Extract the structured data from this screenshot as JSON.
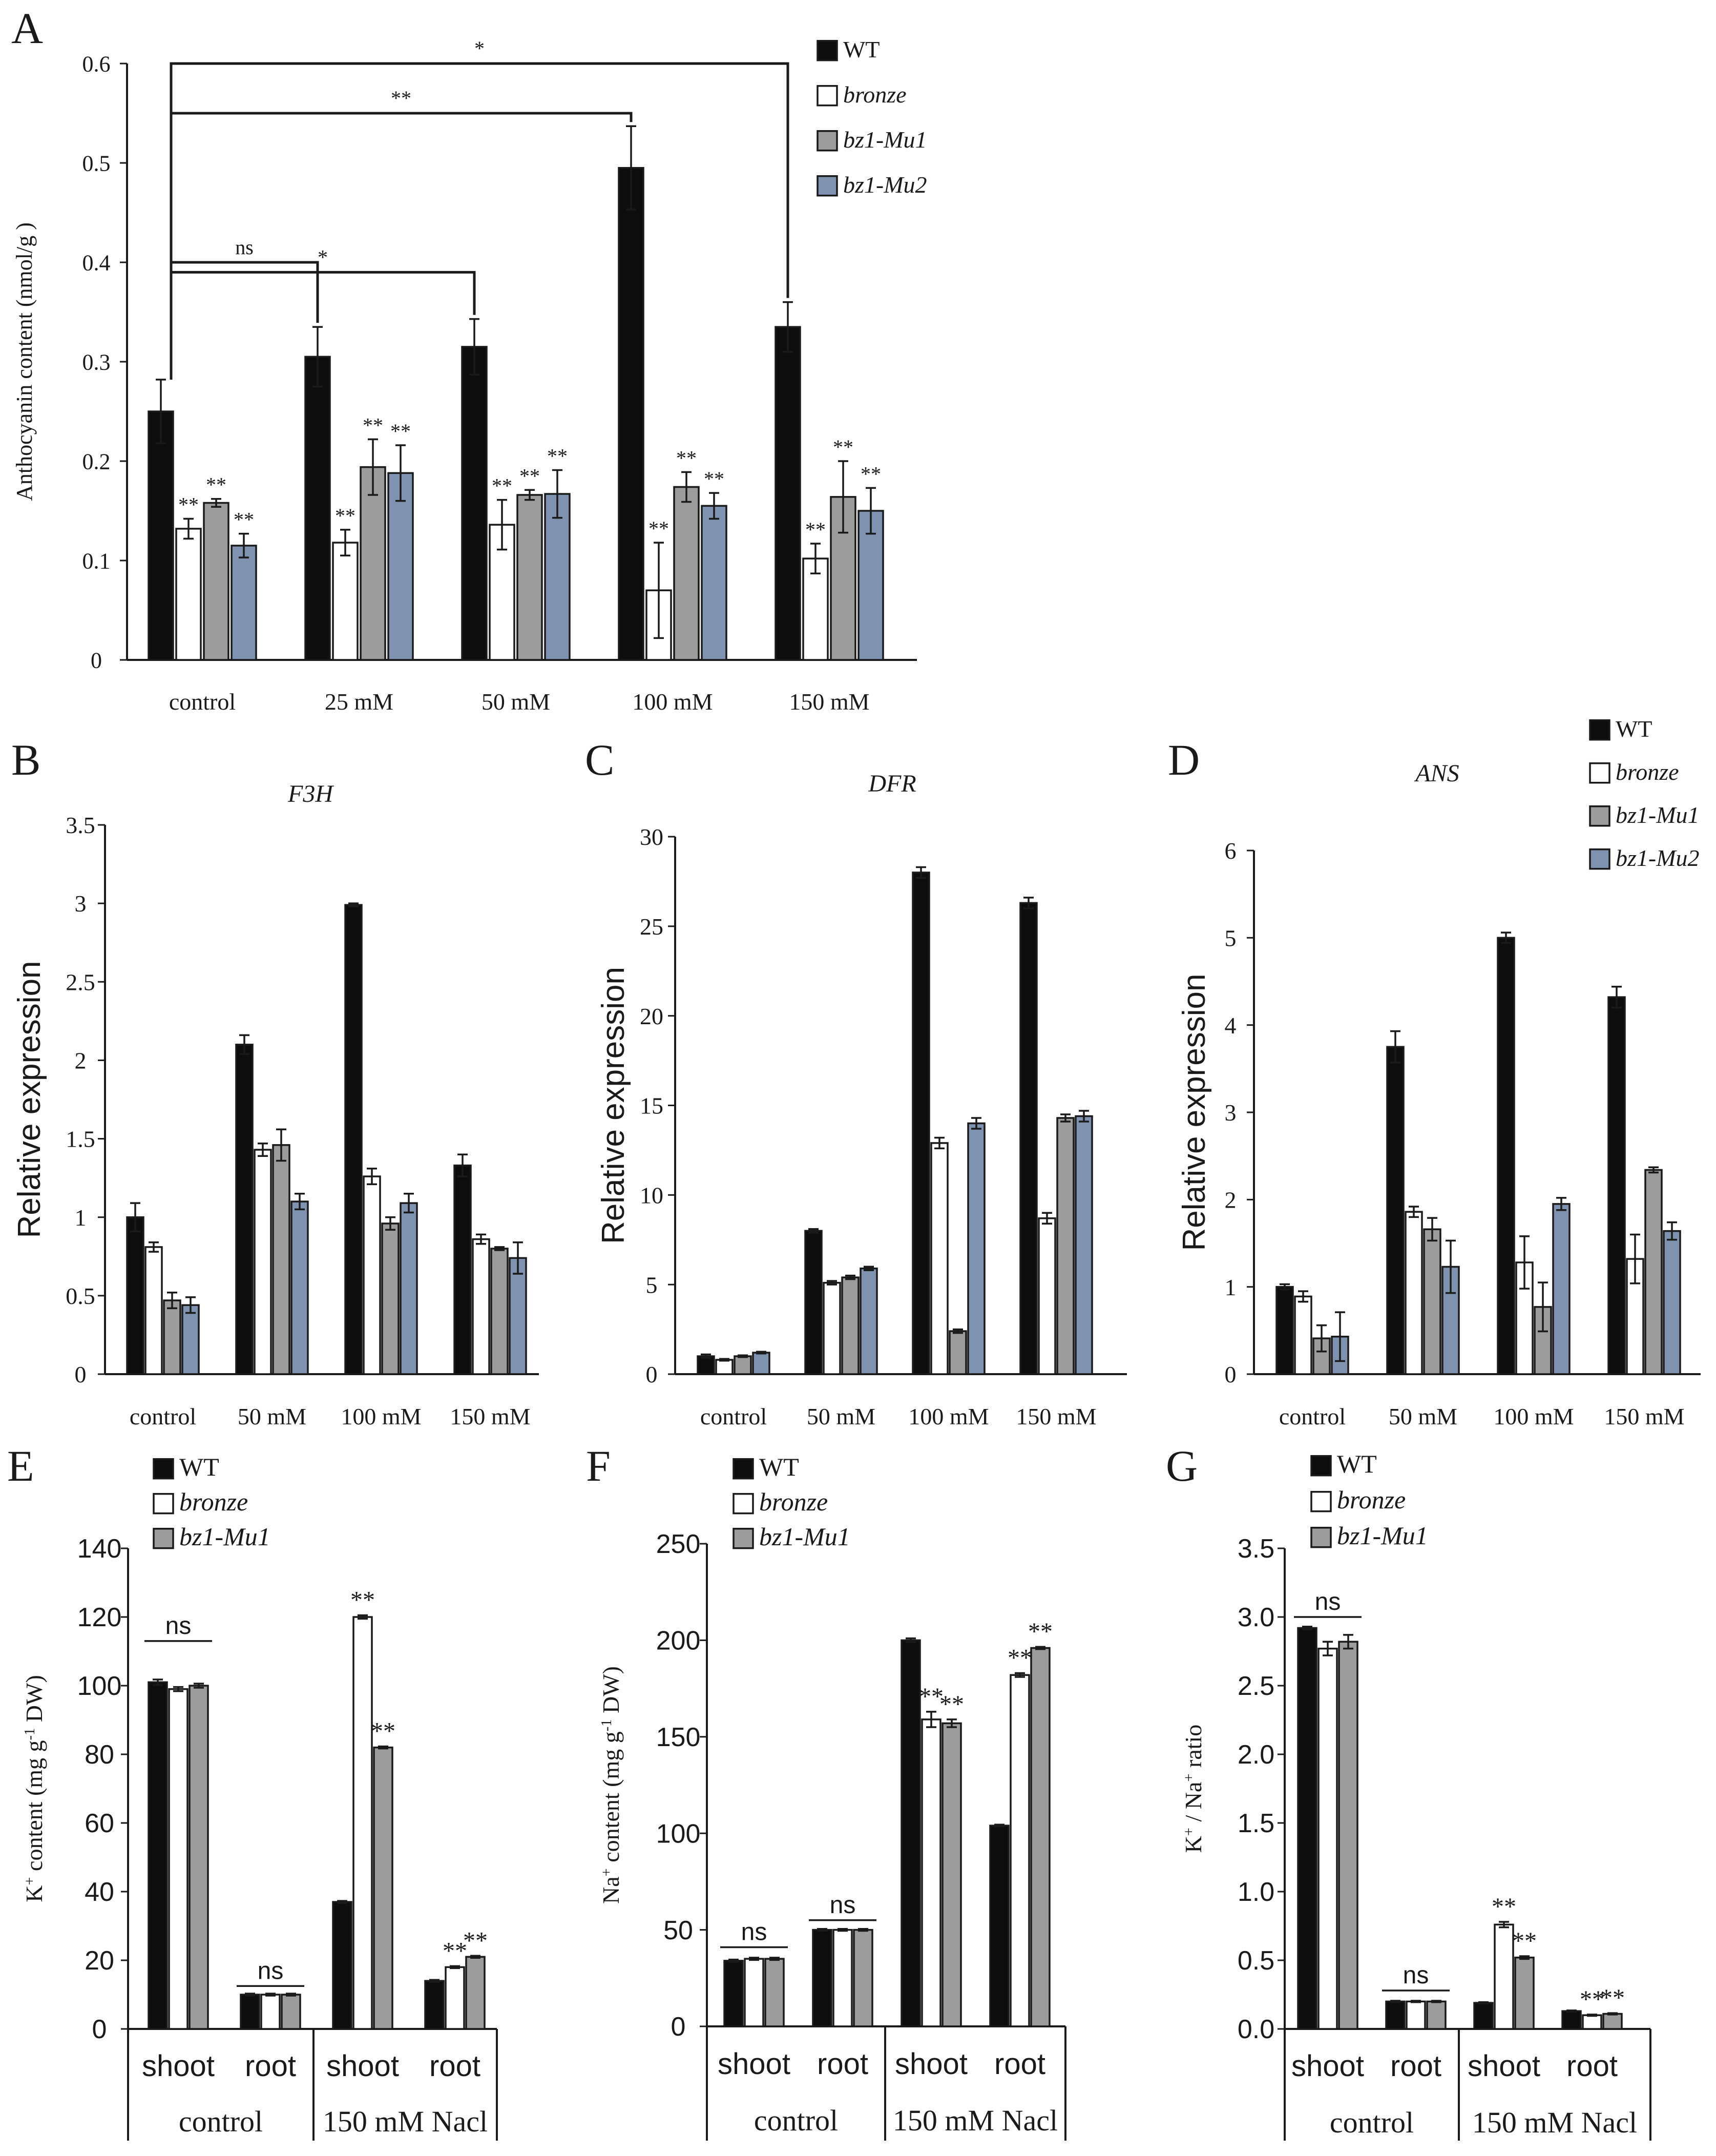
{
  "colors": {
    "WT": "#0d0d0d",
    "bronze": "#ffffff",
    "bz1-Mu1": "#9c9c9c",
    "bz1-Mu2": "#7f93b0"
  },
  "chart_data": [
    {
      "id": "A",
      "panel_label": "A",
      "type": "bar",
      "title": "",
      "ylabel": "Anthocyanin content (nmol/g )",
      "xlabel": "",
      "ylim": [
        0,
        0.6
      ],
      "yticks": [
        "0",
        "0.1",
        "0.2",
        "0.3",
        "0.4",
        "0.5",
        "0.6"
      ],
      "categories": [
        "control",
        "25 mM",
        "50 mM",
        "100 mM",
        "150 mM"
      ],
      "series": [
        {
          "name": "WT",
          "values": [
            0.25,
            0.305,
            0.315,
            0.495,
            0.335
          ],
          "errors": [
            0.032,
            0.03,
            0.028,
            0.042,
            0.025
          ],
          "sig": [
            "",
            "",
            "",
            "",
            ""
          ]
        },
        {
          "name": "bronze",
          "values": [
            0.132,
            0.118,
            0.136,
            0.07,
            0.102
          ],
          "errors": [
            0.01,
            0.013,
            0.025,
            0.048,
            0.015
          ],
          "sig": [
            "**",
            "**",
            "**",
            "**",
            "**"
          ]
        },
        {
          "name": "bz1-Mu1",
          "values": [
            0.158,
            0.194,
            0.166,
            0.174,
            0.164
          ],
          "errors": [
            0.004,
            0.028,
            0.005,
            0.015,
            0.036
          ],
          "sig": [
            "**",
            "**",
            "**",
            "**",
            "**"
          ]
        },
        {
          "name": "bz1-Mu2",
          "values": [
            0.115,
            0.188,
            0.167,
            0.155,
            0.15
          ],
          "errors": [
            0.012,
            0.028,
            0.024,
            0.013,
            0.023
          ],
          "sig": [
            "**",
            "**",
            "**",
            "**",
            "**"
          ]
        }
      ],
      "brackets": [
        {
          "to": 1,
          "label": "ns",
          "level": 0.4
        },
        {
          "to": 2,
          "label": "*",
          "level": 0.39
        },
        {
          "to": 3,
          "label": "**",
          "level": 0.55
        },
        {
          "to": 4,
          "label": "*",
          "level": 0.6
        }
      ],
      "legend": [
        "WT",
        "bronze",
        "bz1-Mu1",
        "bz1-Mu2"
      ],
      "legend_position": "top-right"
    },
    {
      "id": "B",
      "panel_label": "B",
      "type": "bar",
      "title": "F3H",
      "ylabel": "Relative expression",
      "xlabel": "",
      "ylim": [
        0,
        3.5
      ],
      "yticks": [
        "0",
        "0.5",
        "1",
        "1.5",
        "2",
        "2.5",
        "3",
        "3.5"
      ],
      "categories": [
        "control",
        "50 mM",
        "100 mM",
        "150 mM"
      ],
      "series": [
        {
          "name": "WT",
          "values": [
            1.0,
            2.1,
            2.99,
            1.33
          ],
          "errors": [
            0.09,
            0.06,
            0.01,
            0.07
          ]
        },
        {
          "name": "bronze",
          "values": [
            0.81,
            1.43,
            1.26,
            0.86
          ],
          "errors": [
            0.03,
            0.04,
            0.05,
            0.03
          ]
        },
        {
          "name": "bz1-Mu1",
          "values": [
            0.47,
            1.46,
            0.96,
            0.8
          ],
          "errors": [
            0.05,
            0.1,
            0.04,
            0.01
          ]
        },
        {
          "name": "bz1-Mu2",
          "values": [
            0.44,
            1.1,
            1.09,
            0.74
          ],
          "errors": [
            0.05,
            0.05,
            0.06,
            0.1
          ]
        }
      ]
    },
    {
      "id": "C",
      "panel_label": "C",
      "type": "bar",
      "title": "DFR",
      "ylabel": "Relative expression",
      "xlabel": "",
      "ylim": [
        0,
        30
      ],
      "yticks": [
        "0",
        "5",
        "10",
        "15",
        "20",
        "25",
        "30"
      ],
      "categories": [
        "control",
        "50 mM",
        "100 mM",
        "150 mM"
      ],
      "series": [
        {
          "name": "WT",
          "values": [
            1.0,
            8.0,
            28.0,
            26.3
          ],
          "errors": [
            0.1,
            0.1,
            0.3,
            0.3
          ]
        },
        {
          "name": "bronze",
          "values": [
            0.8,
            5.1,
            12.9,
            8.7
          ],
          "errors": [
            0.05,
            0.1,
            0.3,
            0.3
          ]
        },
        {
          "name": "bz1-Mu1",
          "values": [
            1.0,
            5.4,
            2.4,
            14.3
          ],
          "errors": [
            0.05,
            0.1,
            0.1,
            0.2
          ]
        },
        {
          "name": "bz1-Mu2",
          "values": [
            1.2,
            5.9,
            14.0,
            14.4
          ],
          "errors": [
            0.05,
            0.1,
            0.3,
            0.3
          ]
        }
      ]
    },
    {
      "id": "D",
      "panel_label": "D",
      "type": "bar",
      "title": "ANS",
      "ylabel": "Relative expression",
      "xlabel": "",
      "ylim": [
        0,
        6
      ],
      "yticks": [
        "0",
        "1",
        "2",
        "3",
        "4",
        "5",
        "6"
      ],
      "categories": [
        "control",
        "50 mM",
        "100 mM",
        "150 mM"
      ],
      "series": [
        {
          "name": "WT",
          "values": [
            1.0,
            3.75,
            5.0,
            4.32
          ],
          "errors": [
            0.03,
            0.18,
            0.06,
            0.12
          ]
        },
        {
          "name": "bronze",
          "values": [
            0.89,
            1.86,
            1.28,
            1.32
          ],
          "errors": [
            0.06,
            0.06,
            0.3,
            0.28
          ]
        },
        {
          "name": "bz1-Mu1",
          "values": [
            0.41,
            1.66,
            0.77,
            2.34
          ],
          "errors": [
            0.15,
            0.13,
            0.28,
            0.03
          ]
        },
        {
          "name": "bz1-Mu2",
          "values": [
            0.43,
            1.23,
            1.95,
            1.64
          ],
          "errors": [
            0.28,
            0.3,
            0.07,
            0.1
          ]
        }
      ],
      "legend": [
        "WT",
        "bronze",
        "bz1-Mu1",
        "bz1-Mu2"
      ],
      "legend_position": "top-right"
    },
    {
      "id": "E",
      "panel_label": "E",
      "type": "bar",
      "title": "",
      "ylabel_parts": [
        "K",
        "+",
        " content (mg g",
        "-1",
        " DW)"
      ],
      "ylim": [
        0,
        140
      ],
      "yticks": [
        "0",
        "20",
        "40",
        "60",
        "80",
        "100",
        "120",
        "140"
      ],
      "categories": [
        "shoot",
        "root",
        "shoot",
        "root"
      ],
      "groups": [
        {
          "label": "control",
          "span": [
            0,
            1
          ]
        },
        {
          "label": "150 mM Nacl",
          "span": [
            2,
            3
          ]
        }
      ],
      "series": [
        {
          "name": "WT",
          "values": [
            101,
            10,
            37,
            14
          ],
          "errors": [
            0.8,
            0.3,
            0.3,
            0.3
          ],
          "sig": [
            "",
            "",
            "",
            ""
          ]
        },
        {
          "name": "bronze",
          "values": [
            99,
            10,
            120,
            18
          ],
          "errors": [
            0.6,
            0.3,
            0.5,
            0.3
          ],
          "sig": [
            "",
            "",
            "**",
            "**"
          ]
        },
        {
          "name": "bz1-Mu1",
          "values": [
            100,
            10,
            82,
            21
          ],
          "errors": [
            0.6,
            0.3,
            0.3,
            0.3
          ],
          "sig": [
            "",
            "",
            "**",
            "**"
          ]
        }
      ],
      "group_ns": [
        {
          "category": 0,
          "label": "ns",
          "level": 113
        },
        {
          "category": 1,
          "label": "ns",
          "level": 12.5
        }
      ],
      "legend": [
        "WT",
        "bronze",
        "bz1-Mu1"
      ],
      "legend_position": "top-left"
    },
    {
      "id": "F",
      "panel_label": "F",
      "type": "bar",
      "title": "",
      "ylabel_parts": [
        "Na",
        "+",
        " content (mg g",
        "-1",
        " DW)"
      ],
      "ylim": [
        0,
        250
      ],
      "yticks": [
        "0",
        "50",
        "100",
        "150",
        "200",
        "250"
      ],
      "categories": [
        "shoot",
        "root",
        "shoot",
        "root"
      ],
      "groups": [
        {
          "label": "control",
          "span": [
            0,
            1
          ]
        },
        {
          "label": "150 mM Nacl",
          "span": [
            2,
            3
          ]
        }
      ],
      "series": [
        {
          "name": "WT",
          "values": [
            34,
            50,
            200,
            104
          ],
          "errors": [
            0.6,
            0.5,
            1,
            0.5
          ],
          "sig": [
            "",
            "",
            "",
            ""
          ]
        },
        {
          "name": "bronze",
          "values": [
            35,
            50,
            159,
            182
          ],
          "errors": [
            0.6,
            0.5,
            4,
            1
          ],
          "sig": [
            "",
            "",
            "**",
            "**"
          ]
        },
        {
          "name": "bz1-Mu1",
          "values": [
            35,
            50,
            157,
            196
          ],
          "errors": [
            0.6,
            0.5,
            2,
            0.6
          ],
          "sig": [
            "",
            "",
            "**",
            "**"
          ]
        }
      ],
      "group_ns": [
        {
          "category": 0,
          "label": "ns",
          "level": 41
        },
        {
          "category": 1,
          "label": "ns",
          "level": 55
        }
      ],
      "legend": [
        "WT",
        "bronze",
        "bz1-Mu1"
      ],
      "legend_position": "top-left"
    },
    {
      "id": "G",
      "panel_label": "G",
      "type": "bar",
      "title": "",
      "ylabel_parts": [
        "K",
        "+",
        " / Na",
        "+",
        " ratio"
      ],
      "ylim": [
        0,
        3.5
      ],
      "yticks": [
        "0.0",
        "0.5",
        "1.0",
        "1.5",
        "2.0",
        "2.5",
        "3.0",
        "3.5"
      ],
      "categories": [
        "shoot",
        "root",
        "shoot",
        "root"
      ],
      "groups": [
        {
          "label": "control",
          "span": [
            0,
            1
          ]
        },
        {
          "label": "150 mM Nacl",
          "span": [
            2,
            3
          ]
        }
      ],
      "series": [
        {
          "name": "WT",
          "values": [
            2.92,
            0.2,
            0.19,
            0.13
          ],
          "errors": [
            0.01,
            0.005,
            0.005,
            0.005
          ],
          "sig": [
            "",
            "",
            "",
            ""
          ]
        },
        {
          "name": "bronze",
          "values": [
            2.77,
            0.2,
            0.76,
            0.1
          ],
          "errors": [
            0.05,
            0.005,
            0.02,
            0.005
          ],
          "sig": [
            "",
            "",
            "**",
            "**"
          ]
        },
        {
          "name": "bz1-Mu1",
          "values": [
            2.82,
            0.2,
            0.52,
            0.11
          ],
          "errors": [
            0.05,
            0.005,
            0.01,
            0.005
          ],
          "sig": [
            "",
            "",
            "**",
            "**"
          ]
        }
      ],
      "group_ns": [
        {
          "category": 0,
          "label": "ns",
          "level": 3.0
        },
        {
          "category": 1,
          "label": "ns",
          "level": 0.28
        }
      ],
      "legend": [
        "WT",
        "bronze",
        "bz1-Mu1"
      ],
      "legend_position": "top-left"
    }
  ]
}
